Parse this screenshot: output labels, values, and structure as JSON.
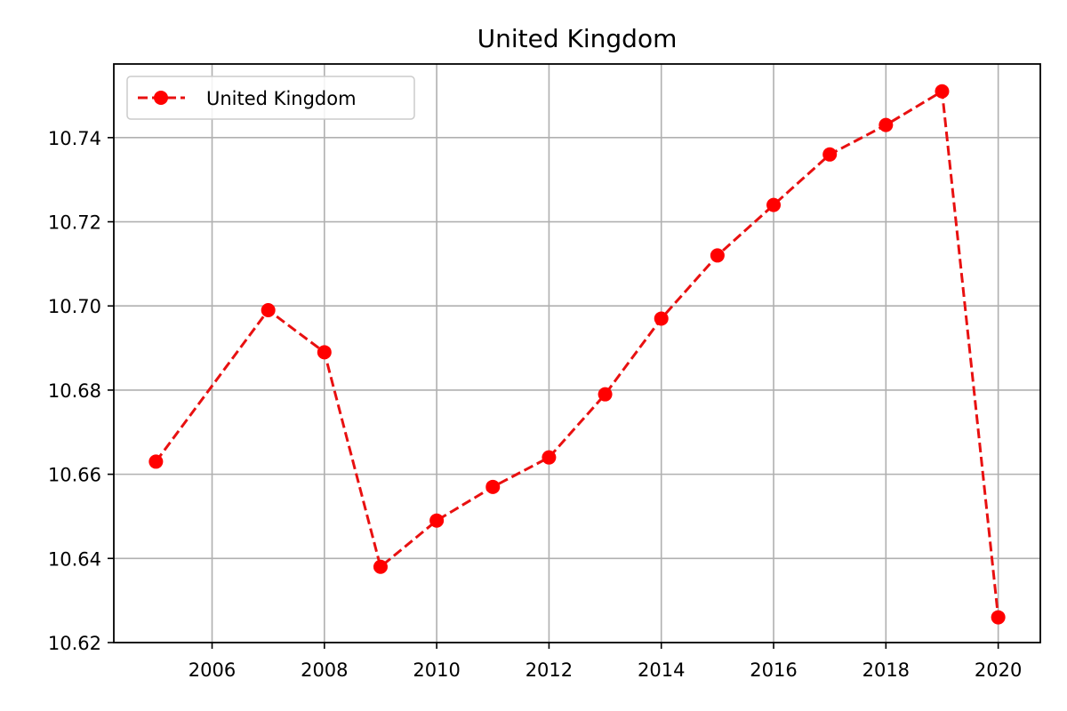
{
  "chart_data": {
    "type": "line",
    "title": "United Kingdom",
    "xlabel": "",
    "ylabel": "",
    "x": [
      2005,
      2007,
      2008,
      2009,
      2010,
      2011,
      2012,
      2013,
      2014,
      2015,
      2016,
      2017,
      2018,
      2019,
      2020
    ],
    "series": [
      {
        "name": "United Kingdom",
        "values": [
          10.663,
          10.699,
          10.689,
          10.638,
          10.649,
          10.657,
          10.664,
          10.679,
          10.697,
          10.712,
          10.724,
          10.736,
          10.743,
          10.751,
          10.626
        ],
        "color": "#ff0000",
        "line_color": "#e81010",
        "line_style": "dashed",
        "marker": "circle"
      }
    ],
    "xlim": [
      2004.25,
      2020.75
    ],
    "ylim": [
      10.62,
      10.7575
    ],
    "x_ticks": [
      2006,
      2008,
      2010,
      2012,
      2014,
      2016,
      2018,
      2020
    ],
    "x_tick_labels": [
      "2006",
      "2008",
      "2010",
      "2012",
      "2014",
      "2016",
      "2018",
      "2020"
    ],
    "y_ticks": [
      10.62,
      10.64,
      10.66,
      10.68,
      10.7,
      10.72,
      10.74
    ],
    "y_tick_labels": [
      "10.62",
      "10.64",
      "10.66",
      "10.68",
      "10.70",
      "10.72",
      "10.74"
    ],
    "grid": true,
    "legend_position": "top-left"
  }
}
